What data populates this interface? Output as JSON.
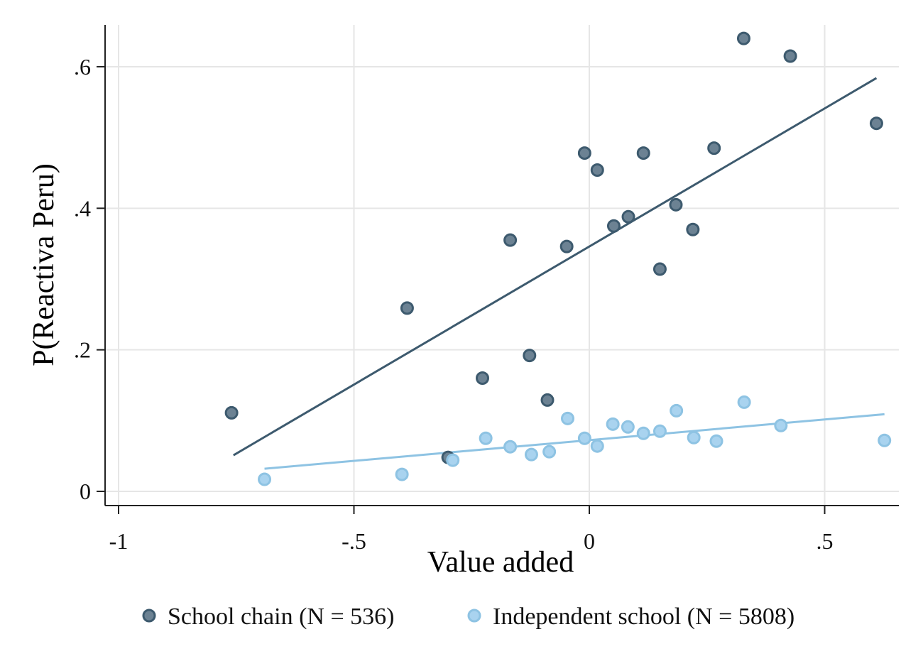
{
  "chart_data": {
    "type": "scatter",
    "title": "",
    "xlabel": "Value added",
    "ylabel": "P(Reactiva Peru)",
    "xlim": [
      -1.0,
      0.66
    ],
    "ylim": [
      -0.02,
      0.66
    ],
    "grid": true,
    "legend_position": "bottom",
    "x_ticks": [
      {
        "value": -1,
        "label": "-1"
      },
      {
        "value": -0.5,
        "label": "-.5"
      },
      {
        "value": 0,
        "label": "0"
      },
      {
        "value": 0.5,
        "label": ".5"
      }
    ],
    "y_ticks": [
      {
        "value": 0,
        "label": "0"
      },
      {
        "value": 0.2,
        "label": ".2"
      },
      {
        "value": 0.4,
        "label": ".4"
      },
      {
        "value": 0.6,
        "label": ".6"
      }
    ],
    "series": [
      {
        "name": "School chain (N = 536)",
        "color": "#3d5a6e",
        "marker_fill": "#6c8293",
        "points": [
          {
            "x": -0.76,
            "y": 0.111
          },
          {
            "x": -0.387,
            "y": 0.259
          },
          {
            "x": -0.3,
            "y": 0.048
          },
          {
            "x": -0.227,
            "y": 0.16
          },
          {
            "x": -0.168,
            "y": 0.355
          },
          {
            "x": -0.127,
            "y": 0.192
          },
          {
            "x": -0.089,
            "y": 0.129
          },
          {
            "x": -0.048,
            "y": 0.346
          },
          {
            "x": -0.01,
            "y": 0.478
          },
          {
            "x": 0.017,
            "y": 0.454
          },
          {
            "x": 0.052,
            "y": 0.375
          },
          {
            "x": 0.083,
            "y": 0.388
          },
          {
            "x": 0.115,
            "y": 0.478
          },
          {
            "x": 0.15,
            "y": 0.314
          },
          {
            "x": 0.184,
            "y": 0.405
          },
          {
            "x": 0.22,
            "y": 0.37
          },
          {
            "x": 0.265,
            "y": 0.485
          },
          {
            "x": 0.328,
            "y": 0.64
          },
          {
            "x": 0.427,
            "y": 0.615
          },
          {
            "x": 0.61,
            "y": 0.52
          }
        ],
        "fit_line": [
          {
            "x": -0.756,
            "y": 0.051
          },
          {
            "x": 0.61,
            "y": 0.584
          }
        ]
      },
      {
        "name": "Independent school (N = 5808)",
        "color": "#8ec3e3",
        "marker_fill": "#a9d3ef",
        "points": [
          {
            "x": -0.69,
            "y": 0.017
          },
          {
            "x": -0.398,
            "y": 0.024
          },
          {
            "x": -0.29,
            "y": 0.044
          },
          {
            "x": -0.22,
            "y": 0.075
          },
          {
            "x": -0.168,
            "y": 0.063
          },
          {
            "x": -0.123,
            "y": 0.052
          },
          {
            "x": -0.085,
            "y": 0.056
          },
          {
            "x": -0.046,
            "y": 0.103
          },
          {
            "x": -0.01,
            "y": 0.075
          },
          {
            "x": 0.017,
            "y": 0.064
          },
          {
            "x": 0.05,
            "y": 0.095
          },
          {
            "x": 0.082,
            "y": 0.091
          },
          {
            "x": 0.115,
            "y": 0.082
          },
          {
            "x": 0.15,
            "y": 0.085
          },
          {
            "x": 0.185,
            "y": 0.114
          },
          {
            "x": 0.222,
            "y": 0.076
          },
          {
            "x": 0.27,
            "y": 0.071
          },
          {
            "x": 0.329,
            "y": 0.126
          },
          {
            "x": 0.407,
            "y": 0.093
          },
          {
            "x": 0.627,
            "y": 0.072
          }
        ],
        "fit_line": [
          {
            "x": -0.69,
            "y": 0.032
          },
          {
            "x": 0.627,
            "y": 0.109
          }
        ]
      }
    ]
  }
}
